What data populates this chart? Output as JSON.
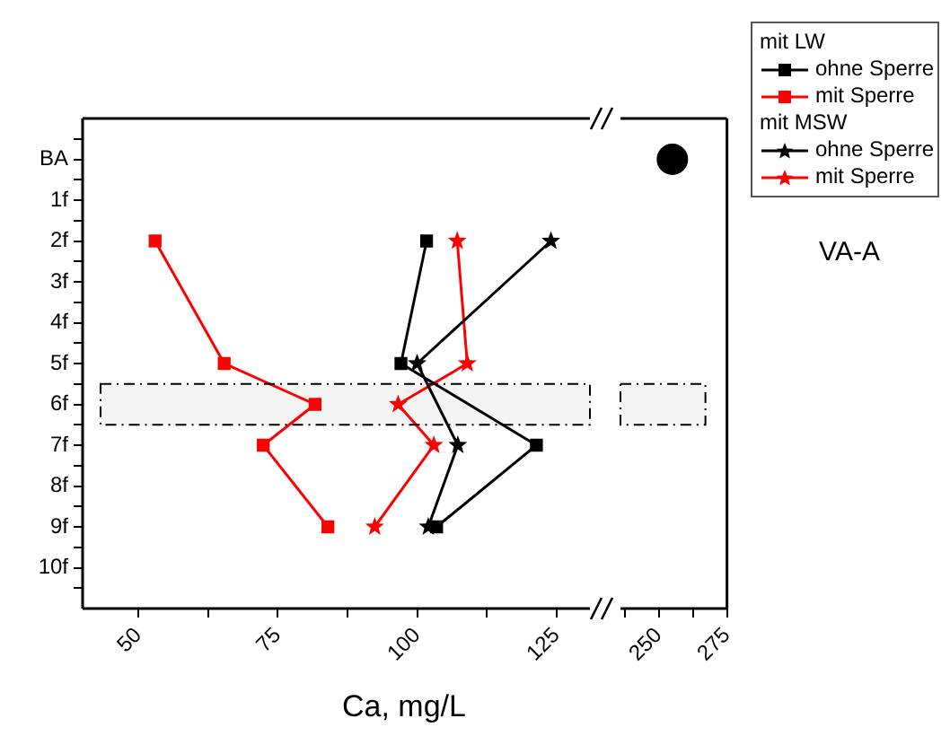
{
  "chart_data": [
    {
      "type": "line",
      "xlabel": "Ca, mg/L",
      "annotations": [
        "mit LW",
        "mit MSW",
        "VA-A"
      ],
      "legend": "top right",
      "xlim": [
        40,
        131
      ],
      "xticks": [
        50,
        {
          "value": 62.5,
          "label": null
        },
        75,
        {
          "value": 87.5,
          "label": null
        },
        100,
        {
          "value": 112.5,
          "label": null
        },
        125
      ],
      "ylim": [
        11,
        -1
      ],
      "yticks": [
        {
          "value": -0.5,
          "label": null
        },
        {
          "value": 0,
          "label": "BA"
        },
        {
          "value": 0.5,
          "label": null
        },
        {
          "value": 1,
          "label": "1f"
        },
        {
          "value": 1.5,
          "label": null
        },
        {
          "value": 2,
          "label": "2f"
        },
        {
          "value": 2.5,
          "label": null
        },
        {
          "value": 3,
          "label": "3f"
        },
        {
          "value": 3.5,
          "label": null
        },
        {
          "value": 4,
          "label": "4f"
        },
        {
          "value": 4.5,
          "label": null
        },
        {
          "value": 5,
          "label": "5f"
        },
        {
          "value": 5.5,
          "label": null
        },
        {
          "value": 6,
          "label": "6f"
        },
        {
          "value": 6.5,
          "label": null
        },
        {
          "value": 7,
          "label": "7f"
        },
        {
          "value": 7.5,
          "label": null
        },
        {
          "value": 8,
          "label": "8f"
        },
        {
          "value": 8.5,
          "label": null
        },
        {
          "value": 9,
          "label": "9f"
        },
        {
          "value": 9.5,
          "label": null
        },
        {
          "value": 10,
          "label": "10f"
        },
        {
          "value": 10.5,
          "label": null
        }
      ],
      "bands": [
        {
          "axis": "y",
          "from": 5.5,
          "to": 6.5,
          "color": "#f4f4f4"
        }
      ],
      "tick_labels": "xy",
      "series": [
        {
          "name": "ohne Sperre",
          "color": "#000000",
          "marker": "square",
          "x": [
            101.7,
            97.1,
            121.4,
            103.5
          ],
          "values": [
            2,
            5,
            7,
            9
          ]
        },
        {
          "name": "mit Sperre",
          "color": "#ff0000",
          "marker": "square",
          "x": [
            53,
            65.4,
            81.7,
            72.4,
            84
          ],
          "values": [
            2,
            5,
            6,
            7,
            9
          ]
        },
        {
          "name": "ohne Sperre",
          "color": "#000000",
          "marker": "star",
          "x": [
            124,
            100,
            107.3,
            102
          ],
          "values": [
            2,
            5,
            7,
            9
          ]
        },
        {
          "name": "mit Sperre",
          "color": "#ff0000",
          "marker": "star",
          "x": [
            107.2,
            109,
            96.6,
            103,
            92.4
          ],
          "values": [
            2,
            5,
            6,
            7,
            9
          ]
        }
      ]
    },
    {
      "type": "scatter",
      "marker": "circle",
      "xlim": [
        236,
        275
      ],
      "xticks": [
        {
          "value": 237.5,
          "label": null
        },
        250,
        {
          "value": 262.5,
          "label": null
        },
        275
      ],
      "ylim": [
        11,
        -1
      ],
      "bands": [
        {
          "axis": "y",
          "from": 5.5,
          "to": 6.5,
          "color": "#f4f4f4"
        }
      ],
      "tick_labels": "x",
      "series": [
        {
          "color": "#000000",
          "x": [
            255
          ],
          "values": [
            0
          ]
        }
      ]
    }
  ]
}
